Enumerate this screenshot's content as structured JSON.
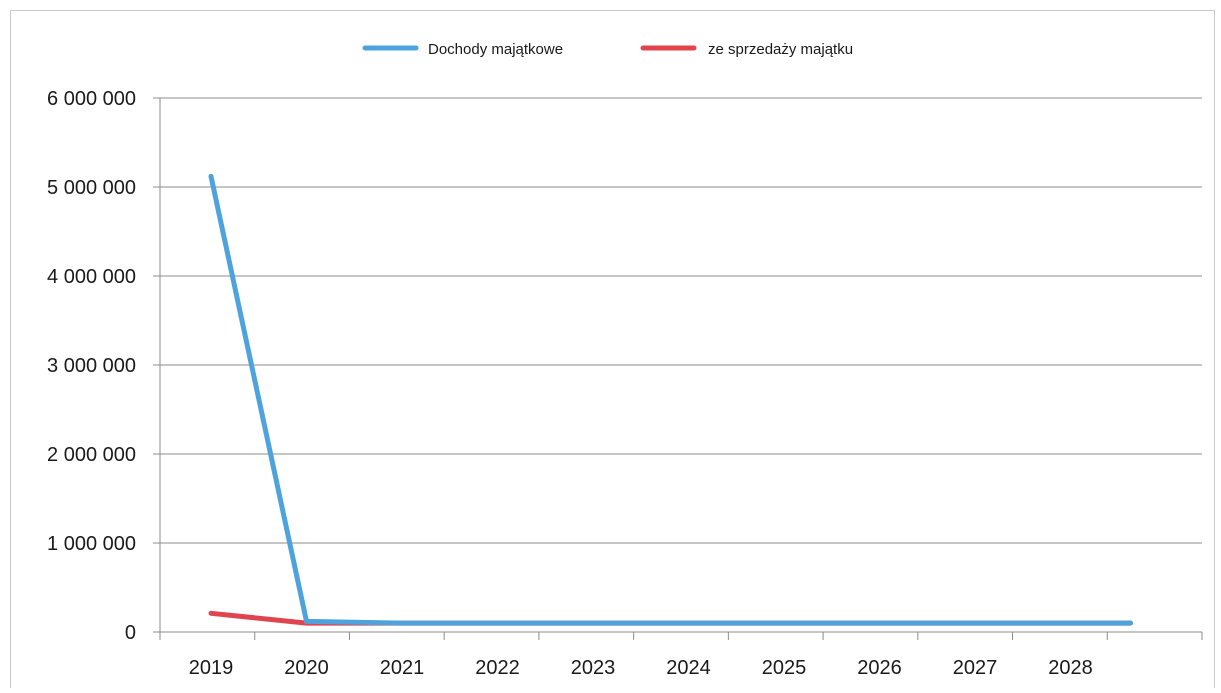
{
  "chart_data": {
    "type": "line",
    "title": "",
    "xlabel": "",
    "ylabel": "",
    "categories": [
      "2019",
      "2020",
      "2021",
      "2022",
      "2023",
      "2024",
      "2025",
      "2026",
      "2027",
      "2028"
    ],
    "y_ticks": [
      "0",
      "1 000 000",
      "2 000 000",
      "3 000 000",
      "4 000 000",
      "5 000 000",
      "6 000 000"
    ],
    "ylim": [
      0,
      6000000
    ],
    "grid": true,
    "legend_position": "top",
    "series": [
      {
        "name": "Dochody majątkowe",
        "color": "#4ea3dc",
        "values": [
          5120000,
          120000,
          100000,
          100000,
          100000,
          100000,
          100000,
          100000,
          100000,
          100000
        ]
      },
      {
        "name": "ze sprzedaży majątku",
        "color": "#e0454f",
        "values": [
          210000,
          100000,
          100000,
          100000,
          100000,
          100000,
          100000,
          100000,
          100000,
          100000
        ]
      }
    ]
  }
}
